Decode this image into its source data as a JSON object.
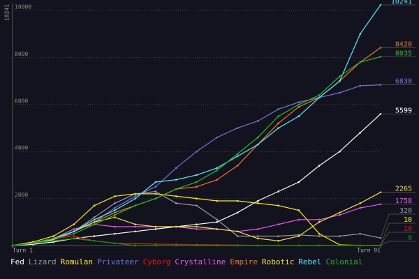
{
  "chart_data": {
    "type": "line",
    "x": [
      1,
      6,
      11,
      16,
      21,
      26,
      31,
      36,
      41,
      46,
      51,
      56,
      61,
      66,
      71,
      76,
      81,
      86,
      91
    ],
    "xlim": [
      1,
      91
    ],
    "xticks": [
      {
        "value": 1,
        "label": "Turn 1"
      },
      {
        "value": 91,
        "label": "Turn 91"
      }
    ],
    "ylim": [
      0,
      10241
    ],
    "yticks": [
      2000,
      4000,
      6000,
      8000,
      10000
    ],
    "grid": true,
    "series": [
      {
        "name": "Fed",
        "color": "#ffffff",
        "values": [
          0,
          50,
          150,
          300,
          400,
          500,
          600,
          700,
          800,
          900,
          1000,
          1400,
          1900,
          2300,
          2700,
          3400,
          4000,
          4800,
          5599
        ]
      },
      {
        "name": "Lizard",
        "color": "#9a9aa6",
        "values": [
          0,
          80,
          250,
          600,
          1200,
          1800,
          2200,
          2300,
          1800,
          1700,
          1100,
          400,
          400,
          400,
          450,
          400,
          400,
          500,
          320
        ]
      },
      {
        "name": "Romulan",
        "color": "#ffee00",
        "values": [
          0,
          150,
          400,
          900,
          1700,
          2100,
          2200,
          2200,
          2100,
          2000,
          1900,
          1900,
          1800,
          1700,
          1500,
          500,
          30,
          10,
          10
        ]
      },
      {
        "name": "Privateer",
        "color": "#7373d9",
        "values": [
          0,
          100,
          300,
          600,
          1000,
          1600,
          2100,
          2500,
          3300,
          4000,
          4600,
          5000,
          5300,
          5800,
          6100,
          6300,
          6500,
          6800,
          6838
        ]
      },
      {
        "name": "Cyborg",
        "color": "#ee1111",
        "values": [
          0,
          100,
          300,
          400,
          200,
          100,
          80,
          60,
          50,
          40,
          30,
          20,
          10,
          10,
          10,
          10,
          10,
          10,
          10
        ]
      },
      {
        "name": "Crystalline",
        "color": "#ee55ee",
        "values": [
          0,
          100,
          300,
          700,
          900,
          800,
          800,
          800,
          800,
          700,
          700,
          600,
          700,
          900,
          1100,
          1100,
          1300,
          1600,
          1758
        ]
      },
      {
        "name": "Empire",
        "color": "#ee7722",
        "values": [
          0,
          100,
          300,
          600,
          1000,
          1400,
          1700,
          2000,
          2400,
          2500,
          2800,
          3400,
          4300,
          5200,
          5900,
          6300,
          7000,
          7800,
          8420
        ]
      },
      {
        "name": "Robotic",
        "color": "#f0e040",
        "values": [
          0,
          100,
          250,
          600,
          1000,
          1200,
          900,
          800,
          800,
          800,
          700,
          600,
          300,
          200,
          400,
          1000,
          1400,
          1800,
          2265
        ]
      },
      {
        "name": "Rebel",
        "color": "#55eeff",
        "values": [
          0,
          100,
          300,
          600,
          1100,
          1500,
          2000,
          2700,
          2800,
          3000,
          3300,
          3800,
          4300,
          5000,
          5500,
          6300,
          7000,
          9000,
          10241
        ]
      },
      {
        "name": "Colonial",
        "color": "#22bb22",
        "values": [
          0,
          100,
          300,
          500,
          900,
          1300,
          1700,
          2000,
          2400,
          2700,
          3200,
          3900,
          4600,
          5500,
          6000,
          6400,
          7200,
          7800,
          8035
        ]
      },
      {
        "color": "#119911",
        "values": [
          0,
          100,
          200,
          300,
          200,
          100,
          0,
          0,
          0,
          0,
          0,
          0,
          0,
          0,
          0,
          0,
          0,
          0,
          0
        ]
      }
    ]
  }
}
